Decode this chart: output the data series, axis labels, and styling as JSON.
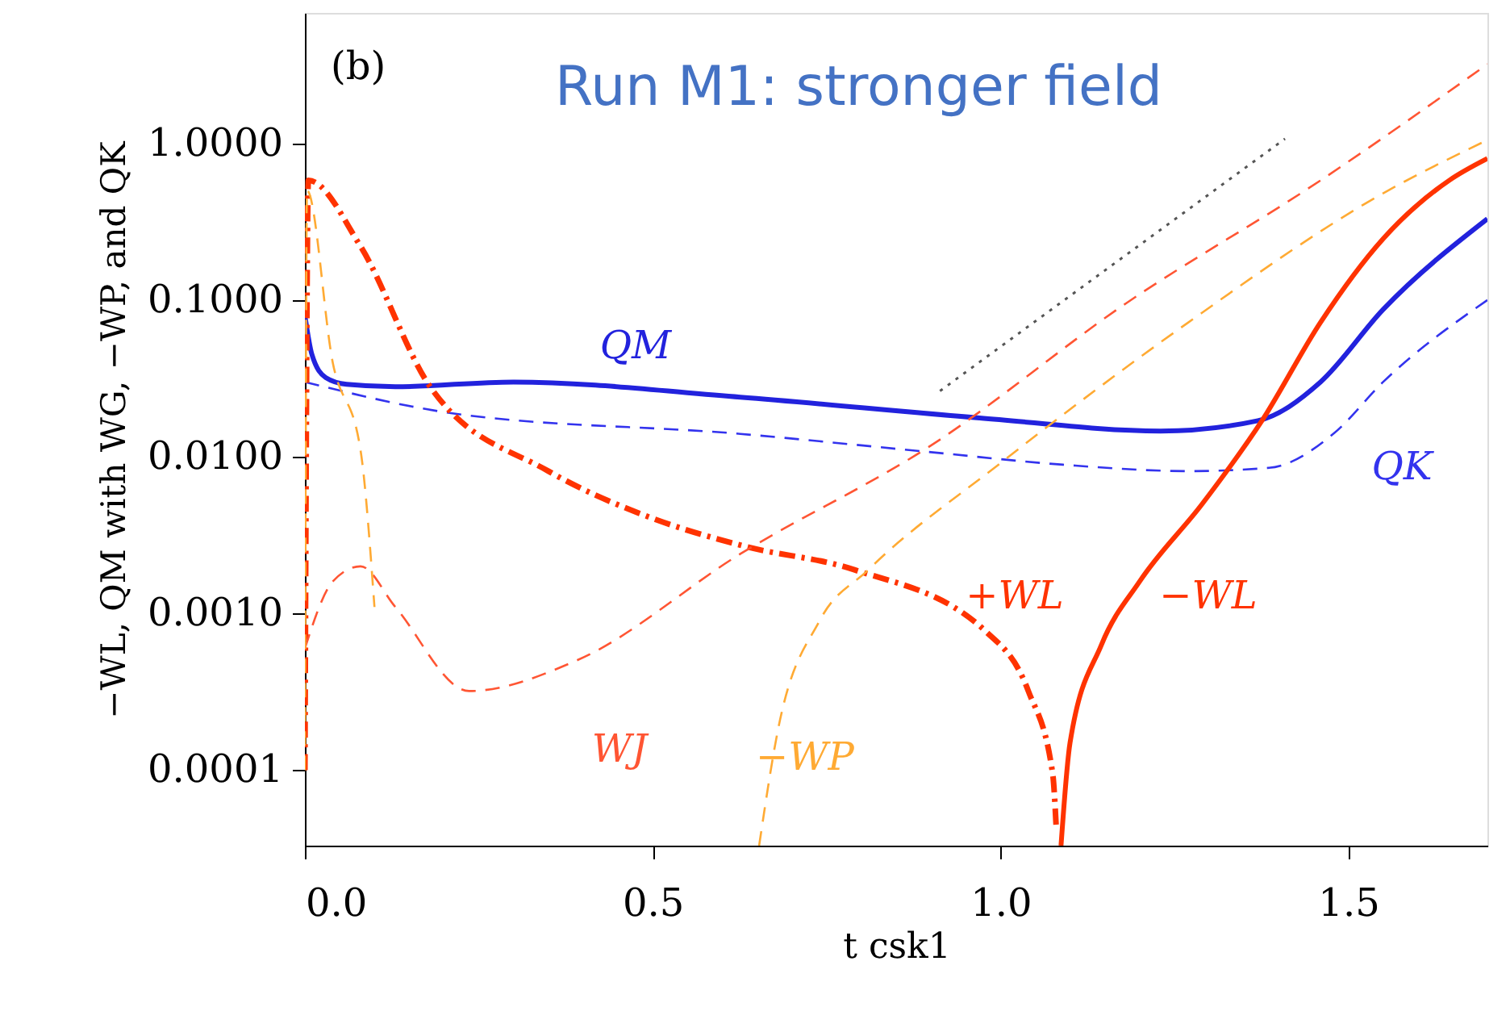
{
  "chart_data": {
    "type": "line",
    "title": "Run M1: stronger field",
    "xlabel": "t  csk1",
    "ylabel": "−WL,  QM with WG, −WP, and QK",
    "log": "y",
    "grid": false,
    "legend": false,
    "xlim": [
      0,
      1.7
    ],
    "ylim": [
      3.3e-05,
      6.8
    ],
    "xticks": [
      {
        "value": 0,
        "label": "0.0"
      },
      {
        "value": 0.5,
        "label": "0.5"
      },
      {
        "value": 1,
        "label": "1.0"
      },
      {
        "value": 1.5,
        "label": "1.5"
      }
    ],
    "yticks": [
      {
        "value": 0.0001,
        "label": "0.0001"
      },
      {
        "value": 0.001,
        "label": "0.0010"
      },
      {
        "value": 0.01,
        "label": "0.0100"
      },
      {
        "value": 0.1,
        "label": "0.1000"
      },
      {
        "value": 1,
        "label": "1.0000"
      }
    ],
    "series": [
      {
        "name": "QM",
        "color": "#2222dd",
        "line_style": "solid",
        "x": [
          0,
          0.01,
          0.03,
          0.06,
          0.13,
          0.3,
          0.626,
          0.97,
          1.23,
          1.37,
          1.46,
          1.55,
          1.7
        ],
        "values": [
          0.08,
          0.045,
          0.032,
          0.029,
          0.028,
          0.03,
          0.024,
          0.0177,
          0.0146,
          0.017,
          0.03,
          0.087,
          0.33
        ]
      },
      {
        "name": "QK",
        "color": "#3333ee",
        "line_style": "dashed",
        "x": [
          0,
          0.21,
          0.626,
          0.9,
          1.09,
          1.27,
          1.386,
          1.48,
          1.55,
          1.7
        ],
        "values": [
          0.03,
          0.019,
          0.014,
          0.0107,
          0.0089,
          0.0081,
          0.0085,
          0.0142,
          0.03,
          0.1
        ]
      },
      {
        "name": "+WL",
        "color": "#ff3300",
        "line_style": "dashdot",
        "x": [
          0,
          0.005,
          0.079,
          0.18,
          0.35,
          0.49,
          0.63,
          0.79,
          0.98,
          1.04,
          1.075,
          1.08
        ],
        "values": [
          0.0001,
          0.58,
          0.224,
          0.028,
          0.0081,
          0.0042,
          0.0027,
          0.0019,
          0.00076,
          0.00032,
          9.5e-05,
          4.4e-05
        ]
      },
      {
        "name": "−WL",
        "color": "#ff3300",
        "line_style": "solid",
        "x": [
          1.087,
          1.1,
          1.145,
          1.2,
          1.29,
          1.377,
          1.46,
          1.55,
          1.645,
          1.7
        ],
        "values": [
          3.3e-05,
          0.00015,
          0.00063,
          0.0016,
          0.005,
          0.0173,
          0.072,
          0.246,
          0.58,
          0.8
        ]
      },
      {
        "name": "WJ",
        "color": "#ff5533",
        "line_style": "dashed",
        "x": [
          0,
          0.04,
          0.08,
          0.13,
          0.236,
          0.39,
          0.626,
          0.9,
          1.18,
          1.46,
          1.7
        ],
        "values": [
          0.0006,
          0.0016,
          0.002,
          0.0011,
          0.00032,
          0.0005,
          0.0024,
          0.0118,
          0.095,
          0.58,
          3.2
        ]
      },
      {
        "name": "−WP",
        "color": "#ffaa33",
        "line_style": "dashed",
        "x": [
          0,
          0.003,
          0.04,
          0.08,
          0.1,
          0.3,
          0.653,
          0.68,
          0.74,
          0.81,
          0.997,
          1.27,
          1.55,
          1.7
        ],
        "values": [
          0.0001,
          0.5,
          0.04,
          0.011,
          0.0011,
          null,
          3.3e-05,
          0.00018,
          0.0009,
          0.0019,
          0.0089,
          0.072,
          0.48,
          1.05
        ]
      },
      {
        "color": "#555555",
        "line_style": "dotted",
        "x": [
          0.913,
          1.409
        ],
        "values": [
          0.0263,
          1.07
        ]
      }
    ],
    "annotations": [
      "(b)"
    ]
  }
}
